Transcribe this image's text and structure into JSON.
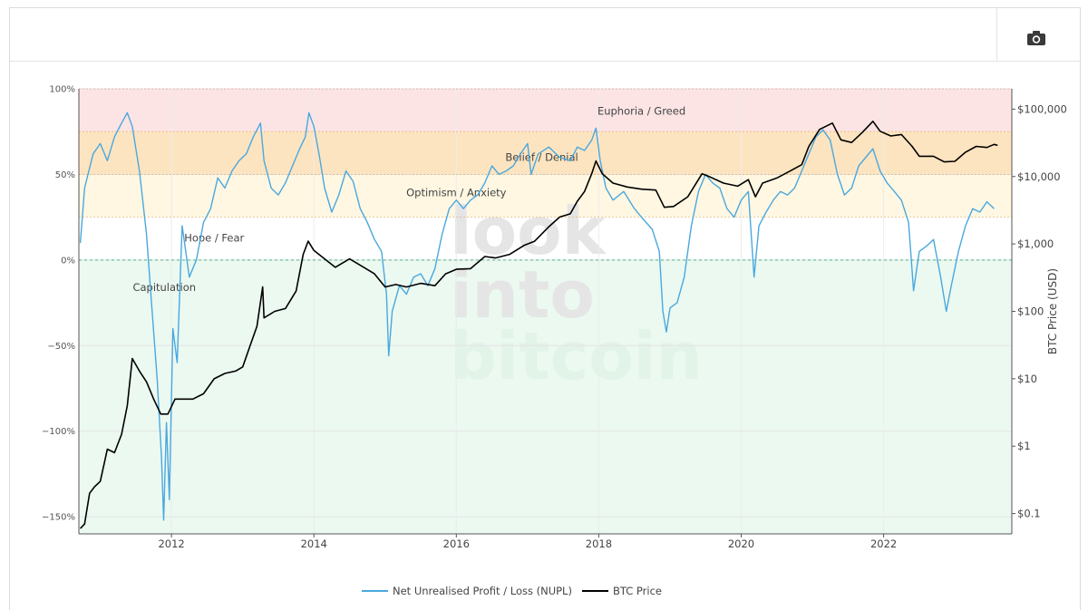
{
  "toolbar": {
    "screenshot_icon": "camera-icon"
  },
  "chart_data": {
    "type": "line",
    "x_ticks": [
      "2012",
      "2014",
      "2016",
      "2018",
      "2020",
      "2022"
    ],
    "x_range": [
      2010.7,
      2023.8
    ],
    "y_left": {
      "ticks": [
        "100%",
        "50%",
        "0%",
        "−50%",
        "−100%",
        "−150%"
      ],
      "values": [
        100,
        50,
        0,
        -50,
        -100,
        -150
      ],
      "range": [
        -160,
        100
      ]
    },
    "y_right": {
      "label": "BTC Price (USD)",
      "scale": "log",
      "ticks": [
        "$100,000",
        "$10,000",
        "$1,000",
        "$100",
        "$10",
        "$1",
        "$0.1"
      ],
      "values": [
        100000,
        10000,
        1000,
        100,
        10,
        1,
        0.1
      ],
      "range": [
        0.05,
        200000
      ]
    },
    "zones": [
      {
        "label": "Euphoria / Greed",
        "from": 75,
        "to": 100,
        "color": "#fce4e4"
      },
      {
        "label": "Belief / Denial",
        "from": 50,
        "to": 75,
        "color": "#fde4c0"
      },
      {
        "label": "Optimism / Anxiety",
        "from": 25,
        "to": 50,
        "color": "#fff7e2"
      },
      {
        "label": "Hope / Fear",
        "from": 0,
        "to": 25,
        "color": "#ffffff"
      },
      {
        "label": "Capitulation",
        "from": -160,
        "to": 0,
        "color": "#ebf9f1"
      }
    ],
    "series": [
      {
        "name": "Net Unrealised Profit / Loss (NUPL)",
        "axis": "left",
        "color": "#4aa8de",
        "points": [
          [
            2010.72,
            10
          ],
          [
            2010.78,
            42
          ],
          [
            2010.9,
            62
          ],
          [
            2011.0,
            68
          ],
          [
            2011.1,
            58
          ],
          [
            2011.2,
            72
          ],
          [
            2011.3,
            80
          ],
          [
            2011.38,
            86
          ],
          [
            2011.45,
            78
          ],
          [
            2011.55,
            52
          ],
          [
            2011.65,
            15
          ],
          [
            2011.72,
            -25
          ],
          [
            2011.8,
            -70
          ],
          [
            2011.86,
            -115
          ],
          [
            2011.89,
            -152
          ],
          [
            2011.93,
            -95
          ],
          [
            2011.97,
            -140
          ],
          [
            2012.02,
            -40
          ],
          [
            2012.08,
            -60
          ],
          [
            2012.15,
            20
          ],
          [
            2012.25,
            -10
          ],
          [
            2012.35,
            0
          ],
          [
            2012.45,
            22
          ],
          [
            2012.55,
            30
          ],
          [
            2012.65,
            48
          ],
          [
            2012.75,
            42
          ],
          [
            2012.85,
            52
          ],
          [
            2012.95,
            58
          ],
          [
            2013.05,
            62
          ],
          [
            2013.15,
            72
          ],
          [
            2013.25,
            80
          ],
          [
            2013.3,
            58
          ],
          [
            2013.4,
            42
          ],
          [
            2013.5,
            38
          ],
          [
            2013.6,
            45
          ],
          [
            2013.7,
            55
          ],
          [
            2013.8,
            65
          ],
          [
            2013.88,
            72
          ],
          [
            2013.93,
            86
          ],
          [
            2014.0,
            78
          ],
          [
            2014.08,
            60
          ],
          [
            2014.15,
            42
          ],
          [
            2014.25,
            28
          ],
          [
            2014.35,
            38
          ],
          [
            2014.45,
            52
          ],
          [
            2014.55,
            46
          ],
          [
            2014.65,
            30
          ],
          [
            2014.75,
            22
          ],
          [
            2014.85,
            12
          ],
          [
            2014.95,
            5
          ],
          [
            2015.02,
            -20
          ],
          [
            2015.05,
            -56
          ],
          [
            2015.1,
            -30
          ],
          [
            2015.2,
            -15
          ],
          [
            2015.3,
            -20
          ],
          [
            2015.4,
            -10
          ],
          [
            2015.5,
            -8
          ],
          [
            2015.6,
            -15
          ],
          [
            2015.7,
            -5
          ],
          [
            2015.8,
            15
          ],
          [
            2015.9,
            30
          ],
          [
            2016.0,
            35
          ],
          [
            2016.1,
            30
          ],
          [
            2016.2,
            35
          ],
          [
            2016.3,
            38
          ],
          [
            2016.4,
            45
          ],
          [
            2016.5,
            55
          ],
          [
            2016.6,
            50
          ],
          [
            2016.7,
            52
          ],
          [
            2016.8,
            55
          ],
          [
            2016.9,
            62
          ],
          [
            2017.0,
            68
          ],
          [
            2017.05,
            50
          ],
          [
            2017.15,
            62
          ],
          [
            2017.3,
            66
          ],
          [
            2017.45,
            60
          ],
          [
            2017.6,
            58
          ],
          [
            2017.7,
            66
          ],
          [
            2017.8,
            64
          ],
          [
            2017.9,
            70
          ],
          [
            2017.96,
            77
          ],
          [
            2018.02,
            58
          ],
          [
            2018.1,
            42
          ],
          [
            2018.2,
            35
          ],
          [
            2018.35,
            40
          ],
          [
            2018.5,
            30
          ],
          [
            2018.6,
            25
          ],
          [
            2018.75,
            18
          ],
          [
            2018.85,
            5
          ],
          [
            2018.9,
            -30
          ],
          [
            2018.95,
            -42
          ],
          [
            2019.0,
            -28
          ],
          [
            2019.1,
            -25
          ],
          [
            2019.2,
            -10
          ],
          [
            2019.3,
            20
          ],
          [
            2019.4,
            40
          ],
          [
            2019.5,
            50
          ],
          [
            2019.6,
            45
          ],
          [
            2019.7,
            42
          ],
          [
            2019.8,
            30
          ],
          [
            2019.9,
            25
          ],
          [
            2020.0,
            35
          ],
          [
            2020.1,
            40
          ],
          [
            2020.18,
            -10
          ],
          [
            2020.25,
            20
          ],
          [
            2020.35,
            28
          ],
          [
            2020.45,
            35
          ],
          [
            2020.55,
            40
          ],
          [
            2020.65,
            38
          ],
          [
            2020.75,
            42
          ],
          [
            2020.85,
            52
          ],
          [
            2020.95,
            62
          ],
          [
            2021.05,
            72
          ],
          [
            2021.15,
            76
          ],
          [
            2021.25,
            70
          ],
          [
            2021.35,
            50
          ],
          [
            2021.45,
            38
          ],
          [
            2021.55,
            42
          ],
          [
            2021.65,
            55
          ],
          [
            2021.75,
            60
          ],
          [
            2021.85,
            65
          ],
          [
            2021.95,
            52
          ],
          [
            2022.05,
            45
          ],
          [
            2022.15,
            40
          ],
          [
            2022.25,
            35
          ],
          [
            2022.35,
            22
          ],
          [
            2022.42,
            -18
          ],
          [
            2022.5,
            5
          ],
          [
            2022.6,
            8
          ],
          [
            2022.7,
            12
          ],
          [
            2022.8,
            -10
          ],
          [
            2022.88,
            -30
          ],
          [
            2022.95,
            -15
          ],
          [
            2023.05,
            5
          ],
          [
            2023.15,
            20
          ],
          [
            2023.25,
            30
          ],
          [
            2023.35,
            28
          ],
          [
            2023.45,
            34
          ],
          [
            2023.55,
            30
          ]
        ]
      },
      {
        "name": "BTC Price",
        "axis": "right",
        "color": "#000000",
        "points": [
          [
            2010.72,
            0.06
          ],
          [
            2010.78,
            0.07
          ],
          [
            2010.85,
            0.2
          ],
          [
            2010.92,
            0.25
          ],
          [
            2011.0,
            0.3
          ],
          [
            2011.1,
            0.9
          ],
          [
            2011.2,
            0.8
          ],
          [
            2011.3,
            1.5
          ],
          [
            2011.38,
            4
          ],
          [
            2011.45,
            20
          ],
          [
            2011.55,
            13
          ],
          [
            2011.65,
            9
          ],
          [
            2011.75,
            5
          ],
          [
            2011.85,
            3
          ],
          [
            2011.95,
            3
          ],
          [
            2012.05,
            5
          ],
          [
            2012.15,
            5
          ],
          [
            2012.3,
            5
          ],
          [
            2012.45,
            6
          ],
          [
            2012.6,
            10
          ],
          [
            2012.75,
            12
          ],
          [
            2012.9,
            13
          ],
          [
            2013.0,
            15
          ],
          [
            2013.1,
            30
          ],
          [
            2013.2,
            60
          ],
          [
            2013.28,
            230
          ],
          [
            2013.3,
            80
          ],
          [
            2013.45,
            100
          ],
          [
            2013.6,
            110
          ],
          [
            2013.75,
            200
          ],
          [
            2013.85,
            700
          ],
          [
            2013.92,
            1100
          ],
          [
            2014.0,
            800
          ],
          [
            2014.15,
            600
          ],
          [
            2014.3,
            450
          ],
          [
            2014.5,
            600
          ],
          [
            2014.7,
            450
          ],
          [
            2014.85,
            360
          ],
          [
            2015.0,
            230
          ],
          [
            2015.15,
            250
          ],
          [
            2015.3,
            230
          ],
          [
            2015.5,
            260
          ],
          [
            2015.7,
            240
          ],
          [
            2015.85,
            360
          ],
          [
            2016.0,
            420
          ],
          [
            2016.2,
            430
          ],
          [
            2016.4,
            650
          ],
          [
            2016.55,
            620
          ],
          [
            2016.75,
            700
          ],
          [
            2016.95,
            950
          ],
          [
            2017.1,
            1100
          ],
          [
            2017.3,
            1800
          ],
          [
            2017.45,
            2500
          ],
          [
            2017.6,
            2800
          ],
          [
            2017.7,
            4300
          ],
          [
            2017.8,
            6000
          ],
          [
            2017.9,
            11000
          ],
          [
            2017.96,
            17000
          ],
          [
            2018.05,
            11000
          ],
          [
            2018.2,
            8000
          ],
          [
            2018.4,
            7000
          ],
          [
            2018.6,
            6500
          ],
          [
            2018.8,
            6300
          ],
          [
            2018.92,
            3500
          ],
          [
            2019.05,
            3600
          ],
          [
            2019.25,
            5000
          ],
          [
            2019.45,
            11000
          ],
          [
            2019.55,
            10000
          ],
          [
            2019.75,
            8000
          ],
          [
            2019.95,
            7200
          ],
          [
            2020.1,
            9000
          ],
          [
            2020.2,
            5000
          ],
          [
            2020.3,
            8000
          ],
          [
            2020.5,
            9500
          ],
          [
            2020.65,
            11500
          ],
          [
            2020.85,
            15000
          ],
          [
            2020.95,
            28000
          ],
          [
            2021.1,
            50000
          ],
          [
            2021.28,
            62000
          ],
          [
            2021.4,
            35000
          ],
          [
            2021.55,
            32000
          ],
          [
            2021.7,
            45000
          ],
          [
            2021.85,
            66000
          ],
          [
            2021.95,
            47000
          ],
          [
            2022.1,
            40000
          ],
          [
            2022.25,
            42000
          ],
          [
            2022.4,
            28000
          ],
          [
            2022.5,
            20000
          ],
          [
            2022.7,
            20000
          ],
          [
            2022.85,
            16500
          ],
          [
            2023.0,
            16800
          ],
          [
            2023.15,
            23000
          ],
          [
            2023.3,
            28000
          ],
          [
            2023.45,
            27000
          ],
          [
            2023.55,
            30000
          ],
          [
            2023.6,
            29000
          ]
        ]
      }
    ],
    "legend_placement": "bottom-center",
    "watermark": [
      "look",
      "into",
      "bitcoin"
    ]
  }
}
